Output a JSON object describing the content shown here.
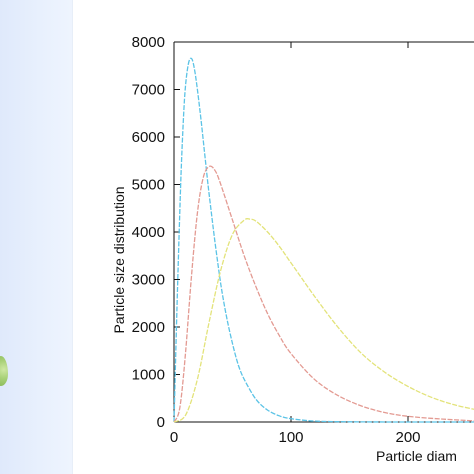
{
  "chart_data": {
    "type": "line",
    "title": "",
    "xlabel": "Particle diam",
    "ylabel": "Particle size distribution",
    "xlim": [
      0,
      260
    ],
    "ylim": [
      0,
      8000
    ],
    "x_ticks": [
      0,
      100,
      200
    ],
    "y_ticks": [
      0,
      1000,
      2000,
      3000,
      4000,
      5000,
      6000,
      7000,
      8000
    ],
    "grid": false,
    "legend": "none",
    "series": [
      {
        "color": "#5bc3e6",
        "style": "dashed",
        "x": [
          0,
          3,
          6,
          9,
          12,
          15,
          18,
          22,
          26,
          30,
          35,
          40,
          45,
          50,
          55,
          60,
          70,
          80,
          90,
          100,
          120,
          150,
          200,
          260
        ],
        "y": [
          0,
          2800,
          5200,
          6800,
          7500,
          7650,
          7350,
          6600,
          5700,
          4800,
          3800,
          2900,
          2200,
          1650,
          1200,
          900,
          480,
          250,
          130,
          70,
          20,
          5,
          0,
          0
        ]
      },
      {
        "color": "#e39a92",
        "style": "dashed",
        "x": [
          0,
          5,
          10,
          15,
          20,
          25,
          30,
          35,
          40,
          50,
          60,
          70,
          80,
          90,
          100,
          120,
          140,
          160,
          180,
          200,
          230,
          260
        ],
        "y": [
          0,
          300,
          1500,
          3100,
          4400,
          5150,
          5380,
          5300,
          5000,
          4250,
          3500,
          2850,
          2280,
          1820,
          1440,
          900,
          560,
          340,
          200,
          120,
          60,
          20
        ]
      },
      {
        "color": "#e3e37a",
        "style": "dashed",
        "x": [
          0,
          10,
          20,
          30,
          40,
          50,
          60,
          65,
          70,
          80,
          90,
          100,
          120,
          140,
          160,
          180,
          200,
          220,
          240,
          260
        ],
        "y": [
          0,
          150,
          900,
          2100,
          3200,
          3950,
          4250,
          4270,
          4230,
          4000,
          3700,
          3350,
          2650,
          2000,
          1450,
          1050,
          750,
          520,
          360,
          250
        ]
      }
    ]
  }
}
